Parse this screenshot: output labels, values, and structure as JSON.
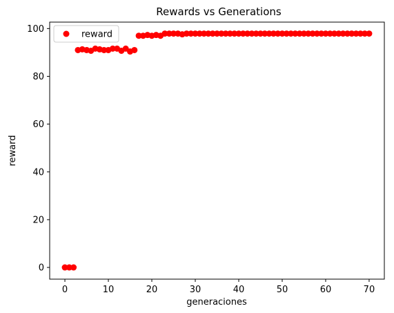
{
  "chart_data": {
    "type": "scatter",
    "title": "Rewards vs Generations",
    "xlabel": "generaciones",
    "ylabel": "reward",
    "xlim": [
      -3.5,
      73.5
    ],
    "ylim": [
      -4.9,
      102.7
    ],
    "xticks": [
      0,
      10,
      20,
      30,
      40,
      50,
      60,
      70
    ],
    "yticks": [
      0,
      20,
      40,
      60,
      80,
      100
    ],
    "legend": {
      "position": "top-left",
      "entries": [
        "reward"
      ]
    },
    "series": [
      {
        "name": "reward",
        "color": "#ff0000",
        "x": [
          0,
          1,
          2,
          3,
          4,
          5,
          6,
          7,
          8,
          9,
          10,
          11,
          12,
          13,
          14,
          15,
          16,
          17,
          18,
          19,
          20,
          21,
          22,
          23,
          24,
          25,
          26,
          27,
          28,
          29,
          30,
          31,
          32,
          33,
          34,
          35,
          36,
          37,
          38,
          39,
          40,
          41,
          42,
          43,
          44,
          45,
          46,
          47,
          48,
          49,
          50,
          51,
          52,
          53,
          54,
          55,
          56,
          57,
          58,
          59,
          60,
          61,
          62,
          63,
          64,
          65,
          66,
          67,
          68,
          69,
          70
        ],
        "y": [
          0,
          0,
          0,
          91.0,
          91.3,
          91.0,
          90.7,
          91.6,
          91.3,
          91.0,
          91.0,
          91.6,
          91.6,
          90.7,
          91.6,
          90.4,
          91.0,
          97.0,
          97.0,
          97.3,
          97.0,
          97.3,
          97.0,
          97.9,
          97.9,
          97.9,
          97.9,
          97.6,
          97.9,
          97.9,
          97.9,
          97.9,
          97.9,
          97.9,
          97.9,
          97.9,
          97.9,
          97.9,
          97.9,
          97.9,
          97.9,
          97.9,
          97.9,
          97.9,
          97.9,
          97.9,
          97.9,
          97.9,
          97.9,
          97.9,
          97.9,
          97.9,
          97.9,
          97.9,
          97.9,
          97.9,
          97.9,
          97.9,
          97.9,
          97.9,
          97.9,
          97.9,
          97.9,
          97.9,
          97.9,
          97.9,
          97.9,
          97.9,
          97.9,
          97.9,
          97.9
        ]
      }
    ]
  }
}
